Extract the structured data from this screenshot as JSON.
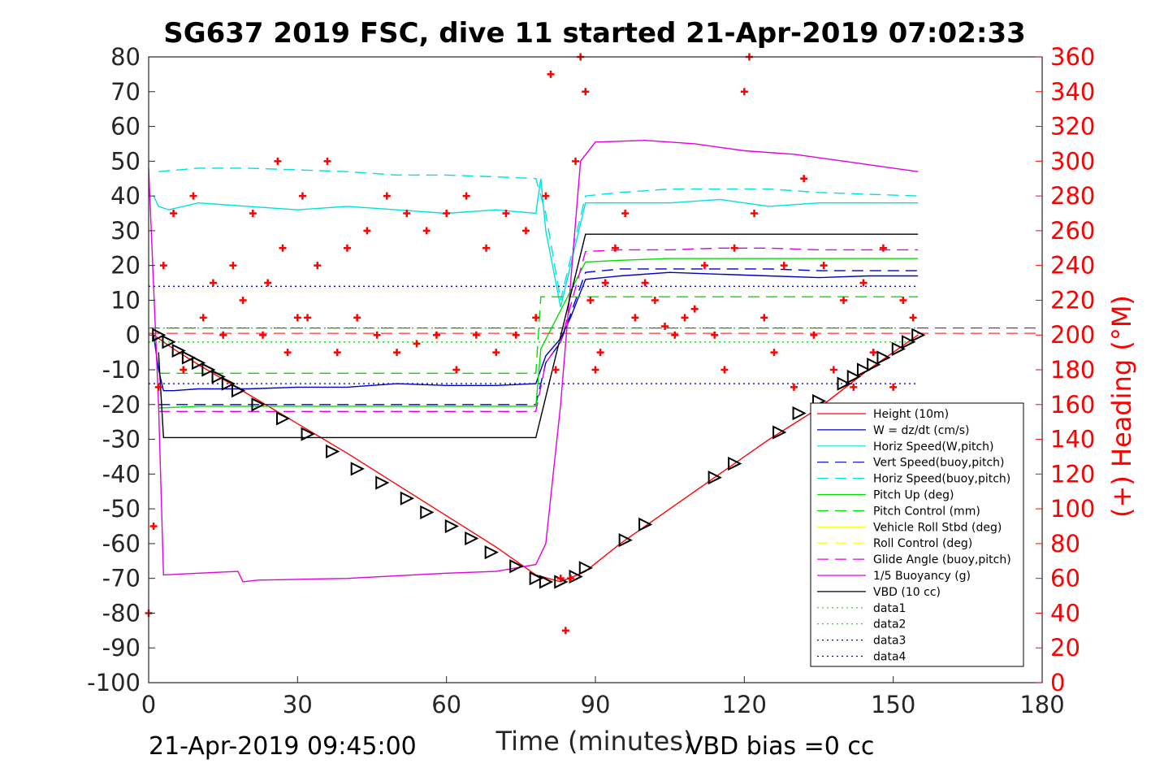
{
  "chart_data": {
    "type": "line",
    "title": "SG637 2019 FSC, dive 11 started 21-Apr-2019 07:02:33",
    "xlabel": "Time (minutes)",
    "ylabel_right": "(+) Heading (°M)",
    "footer_left": "21-Apr-2019 09:45:00",
    "footer_right": "VBD bias =0 cc",
    "xlim": [
      0,
      180
    ],
    "ylim": [
      -100,
      80
    ],
    "ylim_right": [
      0,
      360
    ],
    "xticks": [
      0,
      30,
      60,
      90,
      120,
      150,
      180
    ],
    "yticks": [
      80,
      70,
      60,
      50,
      40,
      30,
      20,
      10,
      0,
      -10,
      -20,
      -30,
      -40,
      -50,
      -60,
      -70,
      -80,
      -90,
      -100
    ],
    "yticks_right": [
      360,
      340,
      320,
      300,
      280,
      260,
      240,
      220,
      200,
      180,
      160,
      140,
      120,
      100,
      80,
      60,
      40,
      20,
      0
    ],
    "legend_position": "bottom-right",
    "legend": [
      {
        "label": "Height (10m)",
        "color": "#ff0000",
        "dash": "solid"
      },
      {
        "label": "W = dz/dt (cm/s)",
        "color": "#0000c8",
        "dash": "solid"
      },
      {
        "label": "Horiz Speed(W,pitch)",
        "color": "#00e0e0",
        "dash": "solid"
      },
      {
        "label": "Vert Speed(buoy,pitch)",
        "color": "#0000c8",
        "dash": "dashed"
      },
      {
        "label": "Horiz Speed(buoy,pitch)",
        "color": "#00e0e0",
        "dash": "dashed"
      },
      {
        "label": "Pitch Up (deg)",
        "color": "#00e000",
        "dash": "solid"
      },
      {
        "label": "Pitch Control (mm)",
        "color": "#00e000",
        "dash": "dashed"
      },
      {
        "label": "Vehicle Roll Stbd (deg)",
        "color": "#ffff00",
        "dash": "solid"
      },
      {
        "label": "Roll Control (deg)",
        "color": "#ffff00",
        "dash": "dashed"
      },
      {
        "label": "Glide Angle (buoy,pitch)",
        "color": "#e000e0",
        "dash": "dashed"
      },
      {
        "label": "1/5 Buoyancy (g)",
        "color": "#e000e0",
        "dash": "solid"
      },
      {
        "label": "VBD (10 cc)",
        "color": "#000000",
        "dash": "solid"
      },
      {
        "label": "data1",
        "color": "#00e000",
        "dash": "dotted"
      },
      {
        "label": "data2",
        "color": "#00e000",
        "dash": "dotted"
      },
      {
        "label": "data3",
        "color": "#0000c8",
        "dash": "dotted"
      },
      {
        "label": "data4",
        "color": "#0000c8",
        "dash": "dotted"
      }
    ],
    "series": [
      {
        "name": "Height (10m)",
        "color": "#ff0000",
        "x": [
          1,
          5,
          10,
          20,
          30,
          40,
          50,
          60,
          70,
          78,
          83,
          88,
          95,
          105,
          115,
          125,
          135,
          145,
          155
        ],
        "y": [
          0,
          -4,
          -8.5,
          -17,
          -25.5,
          -34,
          -43,
          -52,
          -61,
          -69,
          -71,
          -68,
          -60,
          -50,
          -40,
          -30,
          -21,
          -10,
          0
        ]
      },
      {
        "name": "W = dz/dt (cm/s)",
        "color": "#0000c8",
        "x": [
          1,
          2,
          3,
          5,
          10,
          20,
          30,
          40,
          50,
          60,
          70,
          78,
          80,
          83,
          85,
          88,
          95,
          105,
          115,
          125,
          135,
          145,
          155
        ],
        "y": [
          0,
          -10,
          -16,
          -16,
          -15.5,
          -15.5,
          -15,
          -15,
          -14,
          -14.5,
          -14.5,
          -14,
          -6,
          -1,
          5,
          16,
          17,
          18,
          17.5,
          17,
          16.5,
          17,
          17
        ]
      },
      {
        "name": "Horiz Speed(W,pitch)",
        "color": "#00e0e0",
        "x": [
          1,
          2,
          4,
          10,
          20,
          30,
          40,
          50,
          60,
          70,
          78,
          79,
          80,
          83,
          85,
          88,
          95,
          105,
          115,
          125,
          135,
          145,
          155
        ],
        "y": [
          40,
          37,
          36,
          38,
          37,
          36,
          37,
          36,
          35,
          36,
          35,
          45,
          30,
          8,
          20,
          38,
          38,
          38,
          39,
          37,
          38,
          38,
          38
        ]
      },
      {
        "name": "Vert Speed(buoy,pitch)",
        "color": "#0000c8",
        "x": [
          2,
          10,
          20,
          30,
          40,
          50,
          60,
          70,
          78,
          80,
          83,
          88,
          95,
          105,
          115,
          125,
          135,
          145,
          155
        ],
        "y": [
          -20,
          -20,
          -20,
          -20,
          -20,
          -20,
          -20,
          -20,
          -20,
          -8,
          -2,
          18,
          19,
          19,
          19,
          19,
          18.5,
          18.5,
          18.5
        ]
      },
      {
        "name": "Horiz Speed(buoy,pitch)",
        "color": "#00e0e0",
        "x": [
          2,
          10,
          20,
          30,
          40,
          50,
          60,
          70,
          78,
          80,
          83,
          88,
          95,
          105,
          115,
          125,
          135,
          145,
          155
        ],
        "y": [
          47,
          48,
          48,
          47.5,
          47,
          46,
          46,
          45.5,
          45,
          35,
          10,
          40,
          41,
          42,
          42,
          42,
          41,
          40.5,
          40
        ]
      },
      {
        "name": "Pitch Up (deg)",
        "color": "#00e000",
        "x": [
          2,
          10,
          20,
          30,
          40,
          50,
          60,
          70,
          78,
          79,
          88,
          95,
          105,
          115,
          125,
          135,
          145,
          155
        ],
        "y": [
          -21,
          -20.5,
          -20.5,
          -20.5,
          -20.5,
          -20.5,
          -20.5,
          -20.5,
          -20.5,
          -4,
          21,
          21.5,
          22,
          22,
          22,
          22,
          22,
          22
        ]
      },
      {
        "name": "Pitch Control (mm)",
        "color": "#00e000",
        "x": [
          2,
          78,
          79,
          155
        ],
        "y": [
          -11,
          -11,
          11,
          11
        ]
      },
      {
        "name": "Glide Angle (buoy,pitch)",
        "color": "#e000e0",
        "x": [
          2,
          10,
          20,
          30,
          40,
          50,
          60,
          70,
          78,
          80,
          83,
          88,
          95,
          105,
          115,
          125,
          135,
          145,
          155
        ],
        "y": [
          -22,
          -22,
          -22,
          -22,
          -22,
          -22,
          -22,
          -22,
          -22,
          -8,
          -2,
          24,
          24.5,
          24.5,
          25,
          25,
          24.5,
          24.5,
          24.5
        ]
      },
      {
        "name": "1/5 Buoyancy (g)",
        "color": "#e000e0",
        "x": [
          0,
          2,
          3,
          10,
          18,
          19,
          22,
          40,
          60,
          70,
          78,
          80,
          83,
          87,
          90,
          100,
          110,
          120,
          130,
          140,
          150,
          155
        ],
        "y": [
          48,
          -20,
          -69,
          -68.5,
          -68,
          -71,
          -70.5,
          -70,
          -68.5,
          -68,
          -66,
          -60,
          -20,
          50,
          55.5,
          56,
          55,
          53,
          52,
          50,
          48,
          47
        ]
      },
      {
        "name": "VBD (10 cc)",
        "color": "#000000",
        "x": [
          2,
          3,
          78,
          88,
          155
        ],
        "y": [
          -5,
          -29.5,
          -29.5,
          29,
          29
        ]
      },
      {
        "name": "data1",
        "color": "#00e000",
        "x": [
          0,
          155
        ],
        "y": [
          2,
          2
        ]
      },
      {
        "name": "data2",
        "color": "#00e000",
        "x": [
          0,
          155
        ],
        "y": [
          -2,
          -2
        ]
      },
      {
        "name": "data3",
        "color": "#0000c8",
        "x": [
          0,
          155
        ],
        "y": [
          14,
          14
        ]
      },
      {
        "name": "data4",
        "color": "#0000c8",
        "x": [
          0,
          155
        ],
        "y": [
          -14,
          -14
        ]
      }
    ],
    "reference_lines": [
      {
        "y": 2,
        "color": "#8b0000",
        "dash": "dashed"
      },
      {
        "y": 0.5,
        "color": "#ff0000",
        "dash": "dashed"
      }
    ],
    "triangle_markers": {
      "color": "#000000",
      "x": [
        2,
        4,
        6,
        8,
        10,
        12,
        14,
        16,
        18,
        22,
        27,
        32,
        37,
        42,
        47,
        52,
        56,
        61,
        65,
        69,
        74,
        78,
        80,
        83,
        86,
        88,
        96,
        100,
        114,
        118,
        127,
        131,
        135,
        140,
        142,
        144,
        146,
        148,
        151,
        153,
        155
      ],
      "y": [
        0,
        -2,
        -4.5,
        -6.5,
        -8,
        -10,
        -12,
        -14,
        -16,
        -20,
        -24,
        -28.5,
        -33.5,
        -38.5,
        -42.5,
        -47,
        -51,
        -55,
        -58.5,
        -62.5,
        -66.5,
        -70,
        -71,
        -71,
        -69.5,
        -67,
        -59,
        -54.5,
        -41,
        -37,
        -28,
        -22.5,
        -19,
        -14,
        -12,
        -10,
        -8.5,
        -6.5,
        -4,
        -2,
        0
      ]
    },
    "heading_markers": {
      "color": "#ff0000",
      "axis": "right",
      "x": [
        0,
        1,
        2,
        3,
        5,
        7,
        9,
        11,
        13,
        15,
        17,
        19,
        21,
        23,
        24,
        26,
        27,
        28,
        30,
        31,
        32,
        34,
        36,
        38,
        40,
        42,
        44,
        46,
        48,
        50,
        52,
        54,
        56,
        58,
        60,
        62,
        64,
        66,
        68,
        70,
        72,
        74,
        76,
        78,
        80,
        81,
        82,
        83,
        84,
        85,
        86,
        87,
        88,
        89,
        90,
        91,
        92,
        94,
        96,
        98,
        100,
        102,
        104,
        106,
        108,
        110,
        112,
        114,
        116,
        118,
        120,
        121,
        122,
        124,
        126,
        128,
        130,
        132,
        134,
        136,
        138,
        140,
        142,
        144,
        146,
        148,
        150,
        152,
        154
      ],
      "y": [
        40,
        90,
        170,
        240,
        270,
        180,
        280,
        210,
        230,
        200,
        240,
        220,
        270,
        200,
        230,
        300,
        250,
        190,
        210,
        280,
        210,
        240,
        300,
        190,
        250,
        210,
        260,
        200,
        280,
        190,
        270,
        195,
        260,
        200,
        270,
        180,
        280,
        200,
        250,
        190,
        270,
        200,
        260,
        210,
        280,
        350,
        180,
        60,
        30,
        60,
        300,
        360,
        340,
        220,
        180,
        190,
        230,
        250,
        270,
        210,
        230,
        220,
        205,
        200,
        210,
        215,
        240,
        200,
        180,
        250,
        340,
        360,
        270,
        210,
        190,
        240,
        170,
        290,
        200,
        240,
        180,
        220,
        170,
        230,
        190,
        250,
        170,
        220,
        210
      ]
    }
  }
}
